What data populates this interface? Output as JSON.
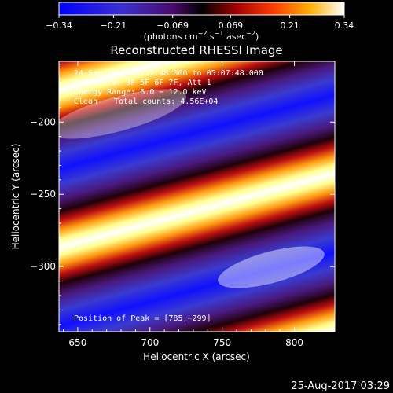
{
  "colorbar": {
    "ticks": [
      "−0.34",
      "−0.21",
      "−0.069",
      "0.069",
      "0.21",
      "0.34"
    ],
    "tick_values": [
      -0.34,
      -0.21,
      -0.069,
      0.069,
      0.21,
      0.34
    ],
    "units_prefix": "(photons cm",
    "units_exp1": "−2",
    "units_mid": " s",
    "units_exp2": "−1",
    "units_mid2": " asec",
    "units_exp3": "−2",
    "units_suffix": ")"
  },
  "chart_data": {
    "type": "heatmap",
    "title": "Reconstructed RHESSI Image",
    "xlabel": "Heliocentric X (arcsec)",
    "ylabel": "Heliocentric Y (arcsec)",
    "xlim": [
      637,
      828
    ],
    "ylim": [
      -345,
      -158
    ],
    "x_ticks": [
      650,
      700,
      750,
      800
    ],
    "x_tick_labels": [
      "650",
      "700",
      "750",
      "800"
    ],
    "y_ticks": [
      -200,
      -250,
      -300
    ],
    "y_tick_labels": [
      "−200",
      "−250",
      "−300"
    ],
    "value_range": [
      -0.34,
      0.34
    ],
    "colormap": [
      "#0000ff",
      "#3a3ad0",
      "#6a3aa0",
      "#3a1040",
      "#000000",
      "#6a0a0a",
      "#c01010",
      "#ff6000",
      "#ffc020",
      "#ffffa0",
      "#ffffff"
    ],
    "annotations": {
      "time": "24-Sep-2015 04:57:48.000 to 05:07:48.000",
      "detectors": "Detectors: 3F 5F 6F 7F, Att 1",
      "energy": "Energy Range: 6.0 − 12.0 keV",
      "clean": "Clean",
      "counts": "Total counts: 4.56E+04",
      "peak": "Position of Peak = [785,−299]"
    },
    "peak": [
      785,
      -299
    ]
  },
  "footer": {
    "date": "25-Aug-2017 03:29"
  }
}
